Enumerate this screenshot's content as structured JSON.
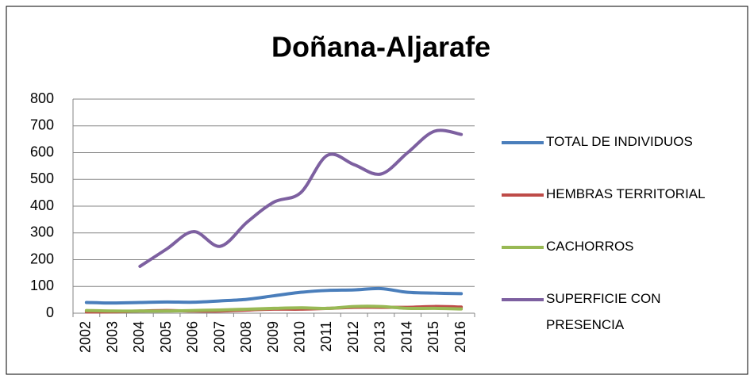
{
  "chart_data": {
    "type": "line",
    "title": "Doñana-Aljarafe",
    "categories": [
      "2002",
      "2003",
      "2004",
      "2005",
      "2006",
      "2007",
      "2008",
      "2009",
      "2010",
      "2011",
      "2012",
      "2013",
      "2014",
      "2015",
      "2016"
    ],
    "series": [
      {
        "name": "TOTAL DE INDIVIDUOS",
        "color": "#4a7ebb",
        "values": [
          40,
          38,
          40,
          42,
          41,
          46,
          52,
          65,
          78,
          85,
          87,
          92,
          78,
          75,
          73
        ]
      },
      {
        "name": "HEMBRAS TERRITORIAL",
        "color": "#be4b48",
        "values": [
          5,
          5,
          8,
          10,
          8,
          8,
          12,
          15,
          15,
          18,
          22,
          22,
          22,
          25,
          23
        ]
      },
      {
        "name": "CACHORROS",
        "color": "#98b954",
        "values": [
          10,
          8,
          8,
          8,
          10,
          12,
          15,
          18,
          20,
          18,
          25,
          25,
          18,
          18,
          16
        ]
      },
      {
        "name": "SUPERFICIE CON PRESENCIA",
        "color": "#7d60a0",
        "values": [
          null,
          null,
          175,
          240,
          305,
          250,
          340,
          415,
          450,
          590,
          555,
          520,
          600,
          680,
          668
        ]
      }
    ],
    "ylim": [
      0,
      800
    ],
    "yticks": [
      0,
      100,
      200,
      300,
      400,
      500,
      600,
      700,
      800
    ],
    "grid": true,
    "legend": "right",
    "smooth": true
  }
}
